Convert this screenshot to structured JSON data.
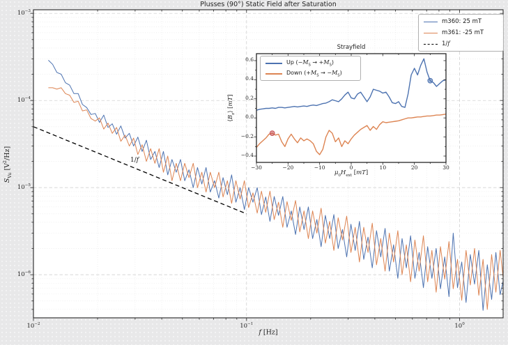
{
  "title": "Plusses (90°) Static Field after Saturation",
  "colors": {
    "blue": "#4c72b0",
    "orange": "#dd8452",
    "red_marker": "#c44e52",
    "dashed_line": "#000000",
    "grid_major": "#c9c9c9",
    "grid_minor": "#e4e4e4",
    "spine": "#262626",
    "axes_bg": "#ffffff",
    "figure_bg": "#e8e8e9"
  },
  "labels": {
    "main_xlabel_fmt": "$f$ [Hz]",
    "main_ylabel_fmt": "$S$_{Vu} [V^{2}/Hz]",
    "inset_title": "Strayfield",
    "inset_xlabel_fmt": "$μ$_{0}$H$_{ext} [$mT$]",
    "inset_ylabel_fmt": "⟨$B$_{z}⟩ [$mT$]",
    "annotation_fmt": "1/$f$"
  },
  "main_legend": {
    "entries": [
      {
        "label": "m360: 25 mT",
        "label_fmt": "m360: 25 mT",
        "color": "#4c72b0",
        "style": "solid"
      },
      {
        "label": "m361: -25 mT",
        "label_fmt": "m361: -25 mT",
        "color": "#dd8452",
        "style": "solid"
      },
      {
        "label": "1/f",
        "label_fmt": "1/$f$",
        "color": "#000000",
        "style": "dashed"
      }
    ]
  },
  "inset_legend": {
    "entries": [
      {
        "label": "Up (−M_S → +M_S)",
        "label_fmt": "Up (−$M$_{S} → +$M$_{S})",
        "color": "#4c72b0",
        "style": "solid"
      },
      {
        "label": "Down (+M_S → −M_S)",
        "label_fmt": "Down (+$M$_{S} → −$M$_{S})",
        "color": "#dd8452",
        "style": "solid"
      }
    ]
  },
  "chart_data": [
    {
      "type": "line",
      "title": "Plusses (90°) Static Field after Saturation",
      "xlabel": "f [Hz]",
      "ylabel": "S_Vu [V²/Hz]",
      "xscale": "log",
      "yscale": "log",
      "xlim": [
        0.01,
        1.6
      ],
      "ylim": [
        3.2e-07,
        0.0011
      ],
      "xticks": [
        0.01,
        0.1,
        1
      ],
      "yticks": [
        0.001,
        0.0001,
        1e-05,
        1e-06
      ],
      "grid": true,
      "legend_position": "upper right",
      "x": [
        0.01175,
        0.0123,
        0.01288,
        0.01349,
        0.01413,
        0.01479,
        0.01549,
        0.01622,
        0.01698,
        0.01778,
        0.01862,
        0.0195,
        0.02042,
        0.02138,
        0.02239,
        0.02344,
        0.02455,
        0.0257,
        0.02692,
        0.02818,
        0.02951,
        0.0309,
        0.03236,
        0.03388,
        0.03548,
        0.03715,
        0.0389,
        0.04074,
        0.04266,
        0.04467,
        0.04677,
        0.04898,
        0.05129,
        0.0537,
        0.05623,
        0.05888,
        0.06166,
        0.06457,
        0.06761,
        0.07079,
        0.07413,
        0.07762,
        0.08128,
        0.08511,
        0.08913,
        0.09333,
        0.09772,
        0.1023,
        0.1072,
        0.1122,
        0.1175,
        0.123,
        0.1288,
        0.1349,
        0.1413,
        0.1479,
        0.1549,
        0.1622,
        0.1698,
        0.1778,
        0.1862,
        0.195,
        0.2042,
        0.2138,
        0.2239,
        0.2344,
        0.2455,
        0.257,
        0.2692,
        0.2818,
        0.2951,
        0.309,
        0.3236,
        0.3388,
        0.3548,
        0.3715,
        0.389,
        0.4074,
        0.4266,
        0.4467,
        0.4677,
        0.4898,
        0.5129,
        0.537,
        0.5623,
        0.5888,
        0.6166,
        0.6457,
        0.6761,
        0.7079,
        0.7413,
        0.7762,
        0.8128,
        0.8511,
        0.8913,
        0.9333,
        0.9772,
        1.023,
        1.072,
        1.122,
        1.175,
        1.23,
        1.288,
        1.349,
        1.413,
        1.479,
        1.549,
        1.622
      ],
      "series": [
        {
          "name": "m360: 25 mT",
          "color": "#4c72b0",
          "values": [
            0.00029,
            0.00026,
            0.00021,
            0.0002,
            0.00016,
            0.00015,
            0.00012,
            0.00012,
            9e-05,
            8.3e-05,
            6.9e-05,
            7.1e-05,
            5.6e-05,
            6.8e-05,
            4.9e-05,
            5.4e-05,
            4.1e-05,
            5.1e-05,
            3.7e-05,
            4.2e-05,
            3e-05,
            3.8e-05,
            2.6e-05,
            3.5e-05,
            2.1e-05,
            2.6e-05,
            1.7e-05,
            2.6e-05,
            1.4e-05,
            2.1e-05,
            1.5e-05,
            2.1e-05,
            1.2e-05,
            1.6e-05,
            1e-05,
            1.7e-05,
            1.1e-05,
            1.7e-05,
            8.9e-06,
            1.2e-05,
            7.6e-06,
            1.3e-05,
            8.3e-06,
            1.4e-05,
            6.8e-06,
            1e-05,
            5.6e-06,
            1e-05,
            6.8e-06,
            1e-05,
            4.9e-06,
            7.8e-06,
            4.1e-06,
            7.9e-06,
            4.8e-06,
            7.9e-06,
            3.5e-06,
            5.4e-06,
            2.9e-06,
            6e-06,
            3.3e-06,
            6e-06,
            2.6e-06,
            4.3e-06,
            2.1e-06,
            4.8e-06,
            2.6e-06,
            4.9e-06,
            2e-06,
            3.3e-06,
            1.6e-06,
            3.8e-06,
            1.9e-06,
            4.1e-06,
            1.5e-06,
            2.7e-06,
            1.2e-06,
            3.2e-06,
            1.6e-06,
            3.4e-06,
            1.1e-06,
            2.2e-06,
            9.1e-07,
            2.6e-06,
            1.2e-06,
            2.8e-06,
            9.1e-07,
            1.8e-06,
            7.1e-07,
            2.1e-06,
            9.1e-07,
            2e-06,
            6.9e-07,
            1.6e-06,
            5.6e-07,
            3e-06,
            7.1e-07,
            1.4e-06,
            4.8e-07,
            1.7e-06,
            7.8e-07,
            1.9e-06,
            3.9e-07,
            1.3e-06,
            5.2e-07,
            1.8e-06,
            5.9e-07,
            9.8e-07
          ]
        },
        {
          "name": "m361: -25 mT",
          "color": "#dd8452",
          "values": [
            0.00014,
            0.00014,
            0.000135,
            0.00014,
            0.00012,
            0.000115,
            9.5e-05,
            9.8e-05,
            7.6e-05,
            7.8e-05,
            6.2e-05,
            5.8e-05,
            6.3e-05,
            4.7e-05,
            5.5e-05,
            4.2e-05,
            4.9e-05,
            3.4e-05,
            4e-05,
            3e-05,
            3.7e-05,
            2.4e-05,
            3.1e-05,
            2e-05,
            2.8e-05,
            1.9e-05,
            2.8e-05,
            1.5e-05,
            2.3e-05,
            1.2e-05,
            1.9e-05,
            1.2e-05,
            1.9e-05,
            1.3e-05,
            1.9e-05,
            1e-05,
            1.5e-05,
            8.9e-06,
            1.5e-05,
            1e-05,
            1.5e-05,
            7.8e-06,
            1.2e-05,
            6.6e-06,
            1.2e-05,
            7.4e-06,
            1.2e-05,
            5.9e-06,
            8.7e-06,
            5.1e-06,
            9.1e-06,
            5.2e-06,
            9.1e-06,
            4.3e-06,
            6.8e-06,
            3.5e-06,
            6.9e-06,
            4.2e-06,
            7.1e-06,
            3.1e-06,
            5.4e-06,
            2.6e-06,
            5.4e-06,
            3e-06,
            5.8e-06,
            2.3e-06,
            4.1e-06,
            1.9e-06,
            4.5e-06,
            2.5e-06,
            4.7e-06,
            1.8e-06,
            3.5e-06,
            1.4e-06,
            3.5e-06,
            1.8e-06,
            3.9e-06,
            1.3e-06,
            2.6e-06,
            1.1e-06,
            3e-06,
            1.4e-06,
            3.2e-06,
            1e-06,
            2.2e-06,
            8.3e-07,
            2.5e-06,
            1.1e-06,
            2.8e-06,
            8.3e-07,
            1.9e-06,
            6.3e-07,
            2.1e-06,
            8.9e-07,
            2.4e-06,
            6.9e-07,
            1.5e-06,
            5.1e-07,
            1.9e-06,
            7.6e-07,
            2e-06,
            5.8e-07,
            1.5e-06,
            4e-07,
            1.7e-06,
            6.3e-07,
            1.9e-06,
            6.9e-07
          ]
        },
        {
          "name": "1/f",
          "color": "#000000",
          "style": "dashed",
          "x": [
            0.01,
            0.1
          ],
          "values": [
            5e-05,
            5e-06
          ]
        }
      ],
      "annotations": [
        {
          "text": "1/f",
          "x": 0.03,
          "y": 1.9e-05
        }
      ]
    },
    {
      "type": "line",
      "title": "Strayfield",
      "xlabel": "μ₀H_ext [mT]",
      "ylabel": "⟨B_z⟩ [mT]",
      "xlim": [
        -30,
        30
      ],
      "ylim": [
        -0.466,
        0.673
      ],
      "xticks": [
        -30,
        -20,
        -10,
        0,
        10,
        20,
        30
      ],
      "yticks": [
        -0.4,
        -0.2,
        0.0,
        0.2,
        0.4,
        0.6
      ],
      "grid": false,
      "legend_position": "upper left",
      "x": [
        -30,
        -29,
        -28,
        -27,
        -26,
        -25,
        -24,
        -23,
        -22,
        -21,
        -20,
        -19,
        -18,
        -17,
        -16,
        -15,
        -14,
        -13,
        -12,
        -11,
        -10,
        -9,
        -8,
        -7,
        -6,
        -5,
        -4,
        -3,
        -2,
        -1,
        0,
        1,
        2,
        3,
        4,
        5,
        6,
        7,
        8,
        9,
        10,
        11,
        12,
        13,
        14,
        15,
        16,
        17,
        18,
        19,
        20,
        21,
        22,
        23,
        24,
        25,
        26,
        27,
        28,
        29,
        30
      ],
      "series": [
        {
          "name": "Up (−M_S → +M_S)",
          "color": "#4c72b0",
          "values": [
            0.08,
            0.09,
            0.095,
            0.1,
            0.1,
            0.105,
            0.1,
            0.11,
            0.11,
            0.105,
            0.11,
            0.115,
            0.12,
            0.115,
            0.12,
            0.125,
            0.12,
            0.13,
            0.135,
            0.13,
            0.14,
            0.15,
            0.155,
            0.17,
            0.19,
            0.18,
            0.17,
            0.2,
            0.24,
            0.27,
            0.21,
            0.2,
            0.25,
            0.27,
            0.22,
            0.17,
            0.22,
            0.3,
            0.29,
            0.28,
            0.26,
            0.27,
            0.22,
            0.16,
            0.15,
            0.17,
            0.12,
            0.11,
            0.25,
            0.45,
            0.52,
            0.45,
            0.55,
            0.62,
            0.48,
            0.39,
            0.37,
            0.33,
            0.36,
            0.39,
            0.4
          ]
        },
        {
          "name": "Down (+M_S → −M_S)",
          "color": "#dd8452",
          "values": [
            -0.31,
            -0.27,
            -0.24,
            -0.21,
            -0.17,
            -0.16,
            -0.18,
            -0.17,
            -0.25,
            -0.3,
            -0.22,
            -0.17,
            -0.22,
            -0.26,
            -0.21,
            -0.24,
            -0.22,
            -0.24,
            -0.27,
            -0.35,
            -0.385,
            -0.33,
            -0.2,
            -0.13,
            -0.16,
            -0.25,
            -0.21,
            -0.3,
            -0.24,
            -0.27,
            -0.22,
            -0.18,
            -0.15,
            -0.12,
            -0.1,
            -0.08,
            -0.13,
            -0.09,
            -0.12,
            -0.07,
            -0.04,
            -0.05,
            -0.045,
            -0.04,
            -0.035,
            -0.03,
            -0.02,
            -0.01,
            0.0,
            0.0,
            0.005,
            0.01,
            0.01,
            0.015,
            0.02,
            0.02,
            0.025,
            0.03,
            0.03,
            0.035,
            0.04
          ]
        }
      ],
      "markers": [
        {
          "series": "Up (−M_S → +M_S)",
          "x": 25,
          "y": 0.39,
          "color": "#4c72b0"
        },
        {
          "series": "Down (+M_S → −M_S)",
          "x": -25,
          "y": -0.16,
          "color": "#c44e52"
        }
      ]
    }
  ]
}
